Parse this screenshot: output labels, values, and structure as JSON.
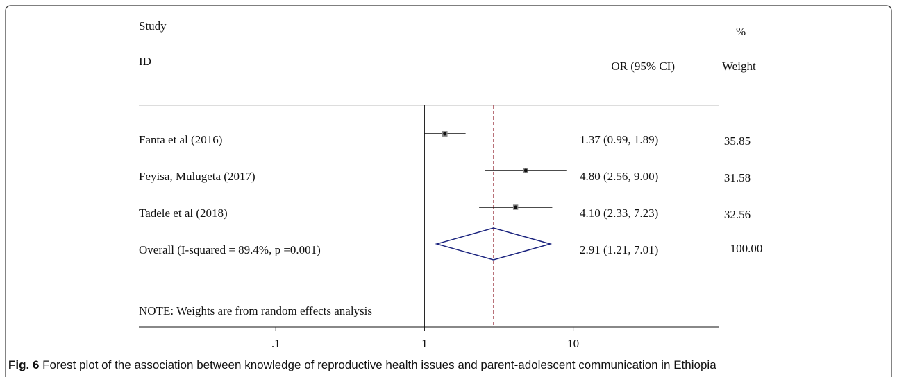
{
  "chart_data": {
    "type": "forest",
    "headers": {
      "study_top": "Study",
      "study_bottom": "ID",
      "effect": "OR (95% CI)",
      "weight_top": "%",
      "weight_bottom": "Weight"
    },
    "categories": [
      "Fanta et al (2016)",
      "Feyisa, Mulugeta (2017)",
      "Tadele et al (2018)"
    ],
    "values": [
      1.37,
      4.8,
      4.1
    ],
    "lower": [
      0.99,
      2.56,
      2.33
    ],
    "upper": [
      1.89,
      9.0,
      7.23
    ],
    "value_labels": [
      "1.37 (0.99, 1.89)",
      "4.80 (2.56, 9.00)",
      "4.10 (2.33, 7.23)"
    ],
    "weights": [
      35.85,
      31.58,
      32.56
    ],
    "overall": {
      "label": "Overall  (I-squared = 89.4%, p =0.001)",
      "value": 2.91,
      "lower": 1.21,
      "upper": 7.01,
      "value_label": "2.91 (1.21, 7.01)",
      "weight": 100,
      "weight_label": "100.00"
    },
    "note": "NOTE: Weights are from random effects analysis",
    "xscale": "log",
    "xlim": [
      0.012,
      95
    ],
    "xticks": [
      {
        "value": 0.1,
        "label": ".1"
      },
      1,
      10
    ],
    "marker_color": "#888888",
    "diamond_color": "#1a237e",
    "overall_line_color": "#a0404a",
    "caption_label": "Fig. 6",
    "caption": " Forest plot of the association between knowledge of reproductive health issues and parent-adolescent communication in Ethiopia"
  }
}
